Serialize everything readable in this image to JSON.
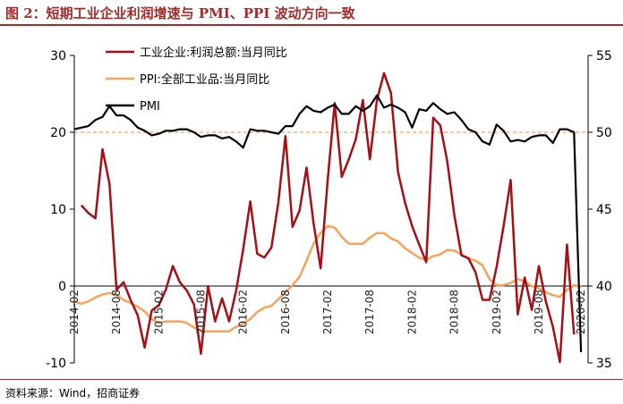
{
  "header": {
    "title": "图 2：短期工业企业利润增速与 PMI、PPI 波动方向一致"
  },
  "footer": {
    "source": "资料来源：Wind，招商证券"
  },
  "colors": {
    "profit": "#A50F15",
    "ppi": "#F7A35C",
    "pmi": "#000000",
    "ref_line": "#F7A35C",
    "accent": "#A52A2A"
  },
  "chart_data": {
    "type": "line",
    "title": "短期工业企业利润增速与 PMI、PPI 波动方向一致",
    "left_axis": {
      "ylim": [
        -10,
        30
      ],
      "ticks": [
        "-10",
        "0",
        "10",
        "20",
        "30"
      ]
    },
    "right_axis": {
      "ylim": [
        35,
        55
      ],
      "ticks": [
        "35",
        "40",
        "45",
        "50",
        "55"
      ]
    },
    "x_range": [
      0,
      73
    ],
    "x_tick_labels": [
      {
        "i": 0,
        "label": "2014-02"
      },
      {
        "i": 6,
        "label": "2014-08"
      },
      {
        "i": 12,
        "label": "2015-02"
      },
      {
        "i": 18,
        "label": "2015-08"
      },
      {
        "i": 24,
        "label": "2016-02"
      },
      {
        "i": 30,
        "label": "2016-08"
      },
      {
        "i": 36,
        "label": "2017-02"
      },
      {
        "i": 42,
        "label": "2017-08"
      },
      {
        "i": 48,
        "label": "2018-02"
      },
      {
        "i": 54,
        "label": "2018-08"
      },
      {
        "i": 60,
        "label": "2019-02"
      },
      {
        "i": 66,
        "label": "2019-08"
      },
      {
        "i": 72,
        "label": "2020-02"
      }
    ],
    "reference_line": {
      "axis": "right",
      "value": 50
    },
    "legend": [
      "工业企业:利润总额:当月同比",
      "PPI:全部工业品:当月同比",
      "PMI"
    ],
    "series": [
      {
        "name": "工业企业:利润总额:当月同比",
        "axis": "left",
        "points": [
          [
            1,
            10.5
          ],
          [
            2,
            9.5
          ],
          [
            3,
            8.8
          ],
          [
            4,
            17.8
          ],
          [
            5,
            13.3
          ],
          [
            6,
            -0.5
          ],
          [
            7,
            0.5
          ],
          [
            8,
            -1.8
          ],
          [
            9,
            -3.8
          ],
          [
            10,
            -8.0
          ],
          [
            11,
            -3.2
          ],
          [
            12,
            -2.5
          ],
          [
            13,
            -0.5
          ],
          [
            14,
            2.6
          ],
          [
            15,
            0.5
          ],
          [
            16,
            -0.6
          ],
          [
            17,
            -2.4
          ],
          [
            18,
            -8.8
          ],
          [
            19,
            0.0
          ],
          [
            20,
            -4.6
          ],
          [
            21,
            -1.6
          ],
          [
            22,
            -4.6
          ],
          [
            23,
            -0.6
          ],
          [
            24,
            4.8
          ],
          [
            25,
            11.0
          ],
          [
            26,
            4.2
          ],
          [
            27,
            3.7
          ],
          [
            28,
            5.0
          ],
          [
            29,
            10.9
          ],
          [
            30,
            19.5
          ],
          [
            31,
            7.7
          ],
          [
            32,
            9.8
          ],
          [
            33,
            15.4
          ],
          [
            34,
            8.2
          ],
          [
            35,
            2.3
          ],
          [
            36,
            13.8
          ],
          [
            37,
            23.8
          ],
          [
            38,
            14.2
          ],
          [
            39,
            16.5
          ],
          [
            40,
            19.1
          ],
          [
            41,
            24.2
          ],
          [
            42,
            16.5
          ],
          [
            43,
            24.2
          ],
          [
            44,
            27.7
          ],
          [
            45,
            25.1
          ],
          [
            46,
            14.8
          ],
          [
            47,
            10.8
          ],
          [
            48,
            7.8
          ],
          [
            49,
            5.4
          ],
          [
            50,
            3.1
          ],
          [
            51,
            21.9
          ],
          [
            52,
            20.9
          ],
          [
            53,
            16.2
          ],
          [
            54,
            9.2
          ],
          [
            55,
            4.0
          ],
          [
            56,
            3.6
          ],
          [
            57,
            1.8
          ],
          [
            58,
            -1.8
          ],
          [
            59,
            -1.8
          ],
          [
            60,
            2.5
          ],
          [
            61,
            7.8
          ],
          [
            62,
            13.8
          ],
          [
            63,
            -3.7
          ],
          [
            64,
            1.1
          ],
          [
            65,
            -3.1
          ],
          [
            66,
            2.6
          ],
          [
            67,
            -2.0
          ],
          [
            68,
            -5.3
          ],
          [
            69,
            -9.9
          ],
          [
            70,
            5.4
          ],
          [
            71,
            -6.3
          ]
        ]
      },
      {
        "name": "PPI:全部工业品:当月同比",
        "axis": "left",
        "points": [
          [
            0,
            -2.0
          ],
          [
            1,
            -2.3
          ],
          [
            2,
            -2.0
          ],
          [
            3,
            -1.5
          ],
          [
            4,
            -1.1
          ],
          [
            5,
            -0.9
          ],
          [
            6,
            -1.2
          ],
          [
            7,
            -1.8
          ],
          [
            8,
            -2.2
          ],
          [
            9,
            -2.7
          ],
          [
            10,
            -3.3
          ],
          [
            11,
            -4.3
          ],
          [
            12,
            -4.8
          ],
          [
            13,
            -4.6
          ],
          [
            14,
            -4.6
          ],
          [
            15,
            -4.6
          ],
          [
            16,
            -4.8
          ],
          [
            17,
            -5.4
          ],
          [
            18,
            -5.9
          ],
          [
            19,
            -5.9
          ],
          [
            20,
            -5.9
          ],
          [
            21,
            -5.9
          ],
          [
            22,
            -5.9
          ],
          [
            23,
            -5.3
          ],
          [
            24,
            -4.9
          ],
          [
            25,
            -4.3
          ],
          [
            26,
            -3.4
          ],
          [
            27,
            -2.8
          ],
          [
            28,
            -2.6
          ],
          [
            29,
            -1.7
          ],
          [
            30,
            -0.8
          ],
          [
            31,
            0.1
          ],
          [
            32,
            1.2
          ],
          [
            33,
            3.3
          ],
          [
            34,
            5.5
          ],
          [
            35,
            6.9
          ],
          [
            36,
            7.8
          ],
          [
            37,
            7.6
          ],
          [
            38,
            6.4
          ],
          [
            39,
            5.5
          ],
          [
            40,
            5.5
          ],
          [
            41,
            5.5
          ],
          [
            42,
            6.3
          ],
          [
            43,
            6.9
          ],
          [
            44,
            6.9
          ],
          [
            45,
            6.2
          ],
          [
            46,
            5.8
          ],
          [
            47,
            4.9
          ],
          [
            48,
            4.3
          ],
          [
            49,
            3.7
          ],
          [
            50,
            3.4
          ],
          [
            51,
            3.9
          ],
          [
            52,
            4.1
          ],
          [
            53,
            4.7
          ],
          [
            54,
            4.6
          ],
          [
            55,
            4.1
          ],
          [
            56,
            3.6
          ],
          [
            57,
            3.3
          ],
          [
            58,
            2.7
          ],
          [
            59,
            0.9
          ],
          [
            60,
            0.1
          ],
          [
            61,
            0.1
          ],
          [
            62,
            0.4
          ],
          [
            63,
            0.9
          ],
          [
            64,
            0.6
          ],
          [
            65,
            0.0
          ],
          [
            66,
            -0.3
          ],
          [
            67,
            -0.8
          ],
          [
            68,
            -1.2
          ],
          [
            69,
            -1.4
          ],
          [
            70,
            -0.5
          ],
          [
            71,
            0.1
          ],
          [
            72,
            -0.1
          ]
        ]
      },
      {
        "name": "PMI",
        "axis": "right",
        "points": [
          [
            0,
            50.2
          ],
          [
            1,
            50.3
          ],
          [
            2,
            50.4
          ],
          [
            3,
            50.8
          ],
          [
            4,
            51.0
          ],
          [
            5,
            51.7
          ],
          [
            6,
            51.1
          ],
          [
            7,
            51.1
          ],
          [
            8,
            50.8
          ],
          [
            9,
            50.3
          ],
          [
            10,
            50.1
          ],
          [
            11,
            49.8
          ],
          [
            12,
            49.9
          ],
          [
            13,
            50.1
          ],
          [
            14,
            50.1
          ],
          [
            15,
            50.2
          ],
          [
            16,
            50.2
          ],
          [
            17,
            50.0
          ],
          [
            18,
            49.7
          ],
          [
            19,
            49.8
          ],
          [
            20,
            49.8
          ],
          [
            21,
            49.6
          ],
          [
            22,
            49.7
          ],
          [
            23,
            49.4
          ],
          [
            24,
            49.0
          ],
          [
            25,
            50.2
          ],
          [
            26,
            50.1
          ],
          [
            27,
            50.1
          ],
          [
            28,
            50.0
          ],
          [
            29,
            49.9
          ],
          [
            30,
            50.4
          ],
          [
            31,
            50.4
          ],
          [
            32,
            51.2
          ],
          [
            33,
            51.7
          ],
          [
            34,
            51.4
          ],
          [
            35,
            51.3
          ],
          [
            36,
            51.6
          ],
          [
            37,
            51.8
          ],
          [
            38,
            51.2
          ],
          [
            39,
            51.2
          ],
          [
            40,
            51.7
          ],
          [
            41,
            51.4
          ],
          [
            42,
            51.7
          ],
          [
            43,
            52.4
          ],
          [
            44,
            51.6
          ],
          [
            45,
            51.8
          ],
          [
            46,
            51.6
          ],
          [
            47,
            51.3
          ],
          [
            48,
            50.3
          ],
          [
            49,
            51.5
          ],
          [
            50,
            51.4
          ],
          [
            51,
            51.9
          ],
          [
            52,
            51.5
          ],
          [
            53,
            51.2
          ],
          [
            54,
            51.3
          ],
          [
            55,
            50.8
          ],
          [
            56,
            50.2
          ],
          [
            57,
            50.0
          ],
          [
            58,
            49.4
          ],
          [
            59,
            49.2
          ],
          [
            60,
            50.5
          ],
          [
            61,
            50.1
          ],
          [
            62,
            49.4
          ],
          [
            63,
            49.5
          ],
          [
            64,
            49.4
          ],
          [
            65,
            49.7
          ],
          [
            66,
            49.8
          ],
          [
            67,
            49.8
          ],
          [
            68,
            49.3
          ],
          [
            69,
            50.2
          ],
          [
            70,
            50.2
          ],
          [
            71,
            50.0
          ],
          [
            72,
            35.7
          ]
        ]
      }
    ]
  }
}
